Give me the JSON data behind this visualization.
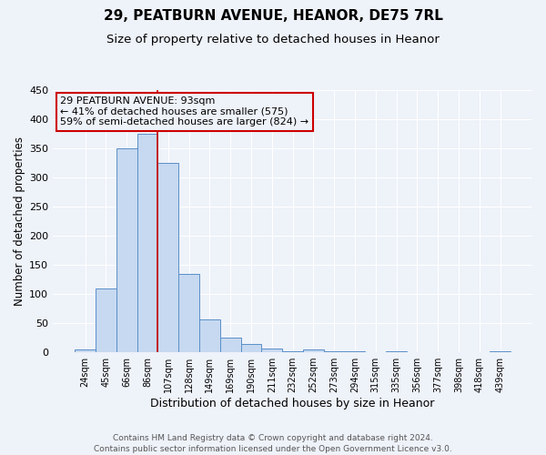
{
  "title": "29, PEATBURN AVENUE, HEANOR, DE75 7RL",
  "subtitle": "Size of property relative to detached houses in Heanor",
  "xlabel": "Distribution of detached houses by size in Heanor",
  "ylabel": "Number of detached properties",
  "categories": [
    "24sqm",
    "45sqm",
    "66sqm",
    "86sqm",
    "107sqm",
    "128sqm",
    "149sqm",
    "169sqm",
    "190sqm",
    "211sqm",
    "232sqm",
    "252sqm",
    "273sqm",
    "294sqm",
    "315sqm",
    "335sqm",
    "356sqm",
    "377sqm",
    "398sqm",
    "418sqm",
    "439sqm"
  ],
  "values": [
    5,
    110,
    350,
    375,
    325,
    135,
    57,
    25,
    14,
    6,
    2,
    5,
    2,
    1,
    0,
    1,
    0,
    0,
    0,
    0,
    2
  ],
  "bar_color": "#c6d9f0",
  "bar_edge_color": "#5b8fc9",
  "property_line_x": 3.5,
  "property_line_color": "#cc0000",
  "annotation_title": "29 PEATBURN AVENUE: 93sqm",
  "annotation_line1": "← 41% of detached houses are smaller (575)",
  "annotation_line2": "59% of semi-detached houses are larger (824) →",
  "annotation_box_color": "#cc0000",
  "ylim": [
    0,
    450
  ],
  "yticks": [
    0,
    50,
    100,
    150,
    200,
    250,
    300,
    350,
    400,
    450
  ],
  "footer_line1": "Contains HM Land Registry data © Crown copyright and database right 2024.",
  "footer_line2": "Contains public sector information licensed under the Open Government Licence v3.0.",
  "background_color": "#eef2f9",
  "grid_color": "#ffffff",
  "title_fontsize": 11,
  "subtitle_fontsize": 9.5,
  "tick_fontsize": 7,
  "ylabel_fontsize": 8.5,
  "xlabel_fontsize": 9,
  "footer_fontsize": 6.5,
  "annotation_fontsize": 8
}
